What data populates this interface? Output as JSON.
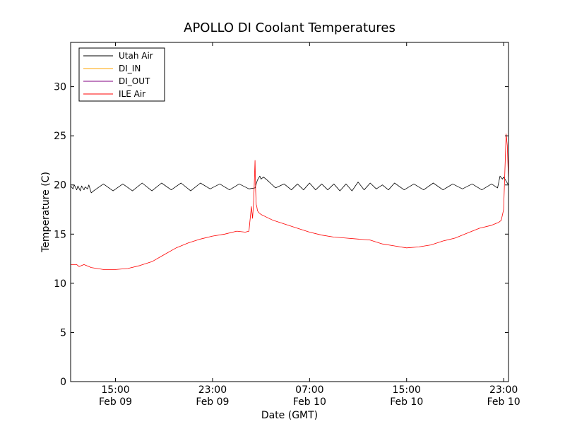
{
  "chart_data": {
    "type": "line",
    "title": "APOLLO DI Coolant Temperatures",
    "xlabel": "Date (GMT)",
    "ylabel": "Temperature (C)",
    "ylim": [
      0,
      34.5
    ],
    "xlim_hours": [
      11.3,
      47.4
    ],
    "grid": false,
    "legend_position": "top-left",
    "y_ticks": [
      0,
      5,
      10,
      15,
      20,
      25,
      30
    ],
    "x_ticks": [
      {
        "hours": 15,
        "label": "15:00",
        "sublabel": "Feb 09"
      },
      {
        "hours": 23,
        "label": "23:00",
        "sublabel": "Feb 09"
      },
      {
        "hours": 31,
        "label": "07:00",
        "sublabel": "Feb 10"
      },
      {
        "hours": 39,
        "label": "15:00",
        "sublabel": "Feb 10"
      },
      {
        "hours": 47,
        "label": "23:00",
        "sublabel": "Feb 10"
      }
    ],
    "x_units": "hours since Feb 09 00:00 GMT",
    "series": [
      {
        "name": "Utah Air",
        "color": "#000000",
        "sawtooth": true,
        "x": [
          11.3,
          11.5,
          11.6,
          11.8,
          11.9,
          12.1,
          12.2,
          12.4,
          12.5,
          12.7,
          12.8,
          13.0,
          13.2,
          14.0,
          14.8,
          15.6,
          16.4,
          17.2,
          18.0,
          18.8,
          19.6,
          20.4,
          21.2,
          22.0,
          22.8,
          23.6,
          24.4,
          25.2,
          26.0,
          26.5,
          26.7,
          26.9,
          27.0,
          27.2,
          27.5,
          28.2,
          28.9,
          29.5,
          30.0,
          30.5,
          31.0,
          31.5,
          32.0,
          32.5,
          33.0,
          33.5,
          34.0,
          34.5,
          35.0,
          35.5,
          36.0,
          36.5,
          37.0,
          37.5,
          38.0,
          38.8,
          39.6,
          40.4,
          41.2,
          42.0,
          42.8,
          43.6,
          44.4,
          45.2,
          46.0,
          46.5,
          46.7,
          46.9,
          47.0,
          47.2,
          47.4
        ],
        "y": [
          19.9,
          19.6,
          20.0,
          19.5,
          19.9,
          19.4,
          19.9,
          19.5,
          19.8,
          19.6,
          20.0,
          19.2,
          19.4,
          20.1,
          19.4,
          20.1,
          19.4,
          20.2,
          19.4,
          20.2,
          19.5,
          20.2,
          19.4,
          20.2,
          19.6,
          20.1,
          19.5,
          20.1,
          19.6,
          19.7,
          20.5,
          20.9,
          20.6,
          20.8,
          20.5,
          19.7,
          20.1,
          19.5,
          20.1,
          19.5,
          20.2,
          19.5,
          20.1,
          19.5,
          20.1,
          19.4,
          20.1,
          19.4,
          20.3,
          19.5,
          20.2,
          19.6,
          20.0,
          19.5,
          20.2,
          19.5,
          20.1,
          19.5,
          20.2,
          19.5,
          20.1,
          19.6,
          20.1,
          19.5,
          20.1,
          19.7,
          20.9,
          20.6,
          20.8,
          20.4,
          20.0
        ]
      },
      {
        "name": "DI_IN",
        "color": "#ffa500",
        "x": [],
        "y": []
      },
      {
        "name": "DI_OUT",
        "color": "#800080",
        "x": [],
        "y": []
      },
      {
        "name": "ILE Air",
        "color": "#ff0000",
        "x": [
          11.3,
          11.8,
          12.0,
          12.2,
          12.4,
          13.0,
          14.0,
          15.0,
          16.0,
          17.0,
          18.0,
          19.0,
          20.0,
          21.0,
          22.0,
          23.0,
          24.0,
          25.0,
          25.7,
          26.0,
          26.2,
          26.3,
          26.4,
          26.5,
          26.55,
          26.6,
          26.65,
          26.7,
          26.8,
          27.0,
          27.5,
          28.0,
          29.0,
          30.0,
          31.0,
          32.0,
          33.0,
          34.0,
          35.0,
          35.5,
          36.0,
          37.0,
          38.0,
          39.0,
          40.0,
          41.0,
          42.0,
          43.0,
          44.0,
          45.0,
          46.0,
          46.4,
          46.6,
          46.8,
          47.0,
          47.2,
          47.3,
          47.4
        ],
        "y": [
          11.9,
          11.9,
          11.7,
          11.8,
          11.9,
          11.6,
          11.4,
          11.4,
          11.5,
          11.8,
          12.2,
          12.9,
          13.6,
          14.1,
          14.5,
          14.8,
          15.0,
          15.3,
          15.2,
          15.3,
          17.8,
          16.6,
          18.5,
          22.5,
          19.5,
          18.0,
          17.8,
          17.4,
          17.2,
          17.0,
          16.7,
          16.4,
          16.0,
          15.6,
          15.2,
          14.9,
          14.7,
          14.6,
          14.5,
          14.45,
          14.4,
          14.0,
          13.8,
          13.6,
          13.7,
          13.9,
          14.3,
          14.6,
          15.1,
          15.6,
          15.9,
          16.1,
          16.2,
          16.4,
          17.5,
          25.2,
          24.0,
          20.5
        ]
      }
    ]
  }
}
